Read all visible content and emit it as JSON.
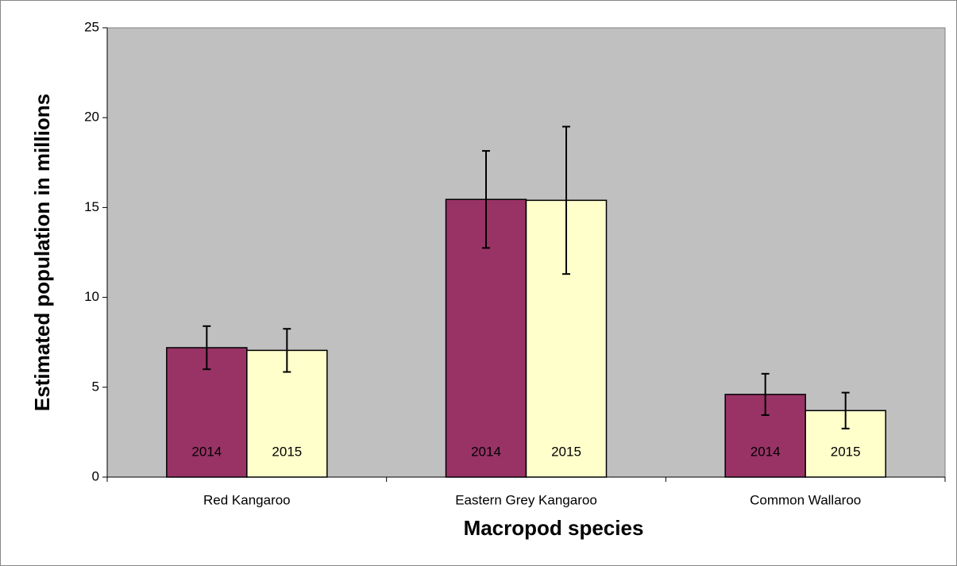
{
  "chart_data": {
    "type": "bar",
    "x_label": "Macropod species",
    "y_label": "Estimated population in millions",
    "categories": [
      "Red Kangaroo",
      "Eastern Grey Kangaroo",
      "Common Wallaroo"
    ],
    "series": [
      {
        "name": "2014",
        "color": "#993366",
        "values": [
          7.2,
          15.45,
          4.6
        ],
        "errors": [
          1.2,
          2.7,
          1.15
        ]
      },
      {
        "name": "2015",
        "color": "#ffffcc",
        "values": [
          7.05,
          15.4,
          3.7
        ],
        "errors": [
          1.2,
          4.1,
          1.0
        ]
      }
    ],
    "ylim": [
      0,
      25
    ],
    "yticks": [
      0,
      5,
      10,
      15,
      20,
      25
    ],
    "plot_background": "#c0c0c0"
  }
}
